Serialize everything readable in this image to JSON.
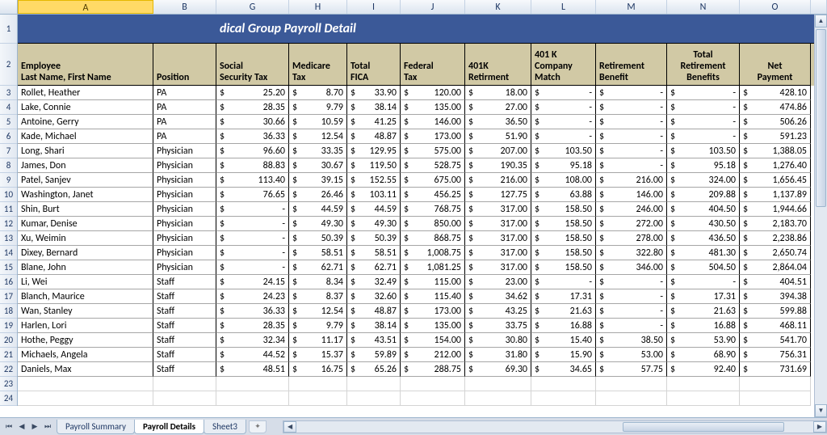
{
  "title": "dical Group Payroll Detail",
  "column_letters": [
    "A",
    "B",
    "G",
    "H",
    "I",
    "J",
    "K",
    "L",
    "M",
    "N",
    "O"
  ],
  "selected_column_index": 0,
  "row_numbers": [
    1,
    2,
    3,
    4,
    5,
    6,
    7,
    8,
    9,
    10,
    11,
    12,
    13,
    14,
    15,
    16,
    17,
    18,
    19,
    20,
    21,
    22,
    23,
    24
  ],
  "headers": [
    "Employee\nLast Name, First Name",
    "Position",
    "Social\nSecurity Tax",
    "Medicare\nTax",
    "Total\nFICA",
    "Federal\nTax",
    "401K\nRetirment",
    "401 K\nCompany\nMatch",
    "Retirement\nBenefit",
    "Total\nRetirement\nBenefits",
    "Net\nPayment"
  ],
  "col_classes": [
    "cA",
    "cB",
    "cG",
    "cH",
    "cI",
    "cJ",
    "cK",
    "cL",
    "cM",
    "cN",
    "cO"
  ],
  "money_cols": [
    false,
    false,
    true,
    true,
    true,
    true,
    true,
    true,
    true,
    true,
    true
  ],
  "rows": [
    [
      "Rollet, Heather",
      "PA",
      "25.20",
      "8.70",
      "33.90",
      "120.00",
      "18.00",
      "-",
      "-",
      "-",
      "428.10"
    ],
    [
      "Lake, Connie",
      "PA",
      "28.35",
      "9.79",
      "38.14",
      "135.00",
      "27.00",
      "-",
      "-",
      "-",
      "474.86"
    ],
    [
      "Antoine, Gerry",
      "PA",
      "30.66",
      "10.59",
      "41.25",
      "146.00",
      "36.50",
      "-",
      "-",
      "-",
      "506.26"
    ],
    [
      "Kade, Michael",
      "PA",
      "36.33",
      "12.54",
      "48.87",
      "173.00",
      "51.90",
      "-",
      "-",
      "-",
      "591.23"
    ],
    [
      "Long, Shari",
      "Physician",
      "96.60",
      "33.35",
      "129.95",
      "575.00",
      "207.00",
      "103.50",
      "-",
      "103.50",
      "1,388.05"
    ],
    [
      "James, Don",
      "Physician",
      "88.83",
      "30.67",
      "119.50",
      "528.75",
      "190.35",
      "95.18",
      "-",
      "95.18",
      "1,276.40"
    ],
    [
      "Patel, Sanjev",
      "Physician",
      "113.40",
      "39.15",
      "152.55",
      "675.00",
      "216.00",
      "108.00",
      "216.00",
      "324.00",
      "1,656.45"
    ],
    [
      "Washington, Janet",
      "Physician",
      "76.65",
      "26.46",
      "103.11",
      "456.25",
      "127.75",
      "63.88",
      "146.00",
      "209.88",
      "1,137.89"
    ],
    [
      "Shin, Burt",
      "Physician",
      "-",
      "44.59",
      "44.59",
      "768.75",
      "317.00",
      "158.50",
      "246.00",
      "404.50",
      "1,944.66"
    ],
    [
      "Kumar, Denise",
      "Physician",
      "-",
      "49.30",
      "49.30",
      "850.00",
      "317.00",
      "158.50",
      "272.00",
      "430.50",
      "2,183.70"
    ],
    [
      "Xu, Weimin",
      "Physician",
      "-",
      "50.39",
      "50.39",
      "868.75",
      "317.00",
      "158.50",
      "278.00",
      "436.50",
      "2,238.86"
    ],
    [
      "Dixey, Bernard",
      "Physician",
      "-",
      "58.51",
      "58.51",
      "1,008.75",
      "317.00",
      "158.50",
      "322.80",
      "481.30",
      "2,650.74"
    ],
    [
      "Blane, John",
      "Physician",
      "-",
      "62.71",
      "62.71",
      "1,081.25",
      "317.00",
      "158.50",
      "346.00",
      "504.50",
      "2,864.04"
    ],
    [
      "Li, Wei",
      "Staff",
      "24.15",
      "8.34",
      "32.49",
      "115.00",
      "23.00",
      "-",
      "-",
      "-",
      "404.51"
    ],
    [
      "Blanch, Maurice",
      "Staff",
      "24.23",
      "8.37",
      "32.60",
      "115.40",
      "34.62",
      "17.31",
      "-",
      "17.31",
      "394.38"
    ],
    [
      "Wan, Stanley",
      "Staff",
      "36.33",
      "12.54",
      "48.87",
      "173.00",
      "43.25",
      "21.63",
      "-",
      "21.63",
      "599.88"
    ],
    [
      "Harlen, Lori",
      "Staff",
      "28.35",
      "9.79",
      "38.14",
      "135.00",
      "33.75",
      "16.88",
      "-",
      "16.88",
      "468.11"
    ],
    [
      "Hothe, Peggy",
      "Staff",
      "32.34",
      "11.17",
      "43.51",
      "154.00",
      "30.80",
      "15.40",
      "38.50",
      "53.90",
      "541.70"
    ],
    [
      "Michaels, Angela",
      "Staff",
      "44.52",
      "15.37",
      "59.89",
      "212.00",
      "31.80",
      "15.90",
      "53.00",
      "68.90",
      "756.31"
    ],
    [
      "Daniels, Max",
      "Staff",
      "48.51",
      "16.75",
      "65.26",
      "288.75",
      "69.30",
      "34.65",
      "57.75",
      "92.40",
      "731.69"
    ]
  ],
  "tabs": {
    "items": [
      "Payroll Summary",
      "Payroll Details",
      "Sheet3"
    ],
    "active_index": 1
  },
  "colors": {
    "title_bg": "#3b5998",
    "header_bg": "#d1c9a5",
    "col_sel_bg": "#ffda66"
  }
}
